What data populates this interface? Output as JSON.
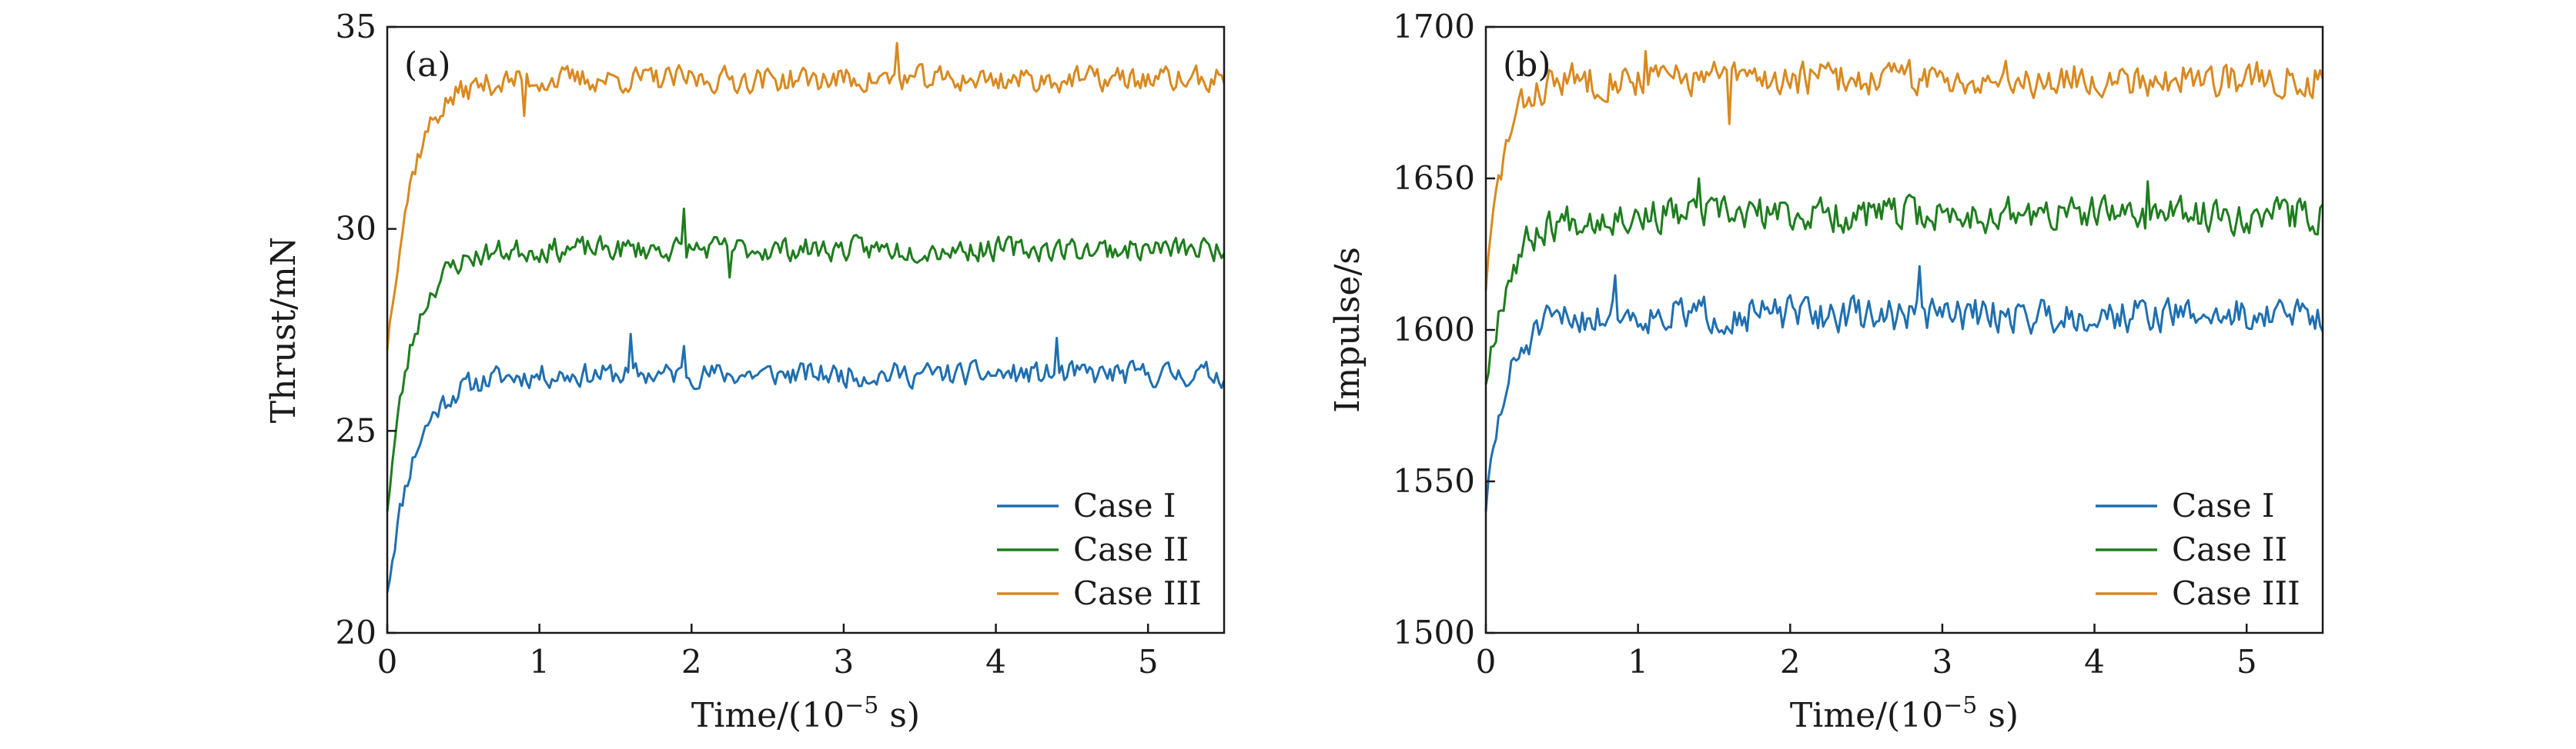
{
  "chart_data": [
    {
      "type": "line",
      "panel_label": "(a)",
      "xlabel": "Time/(10",
      "xlabel_exp": "−5",
      "xlabel_unit": " s)",
      "ylabel": "Thrust/mN",
      "xlim": [
        0,
        5.5
      ],
      "ylim": [
        20,
        35
      ],
      "xticks": [
        0,
        1,
        2,
        3,
        4,
        5
      ],
      "yticks": [
        20,
        25,
        30,
        35
      ],
      "legend_position": "bottom-right",
      "series": [
        {
          "name": "Case I",
          "color": "#1f6fb0",
          "start": 21.0,
          "steady": 26.4,
          "tau": 0.18,
          "noise": 0.28,
          "seed": 11,
          "spikes": [
            [
              1.6,
              27.4
            ],
            [
              1.95,
              27.1
            ],
            [
              4.4,
              27.3
            ]
          ]
        },
        {
          "name": "Case II",
          "color": "#1e7d1e",
          "start": 23.0,
          "steady": 29.5,
          "tau": 0.16,
          "noise": 0.28,
          "seed": 23,
          "spikes": [
            [
              1.95,
              30.5
            ],
            [
              2.25,
              28.8
            ]
          ]
        },
        {
          "name": "Case III",
          "color": "#d9891f",
          "start": 27.0,
          "steady": 33.7,
          "tau": 0.16,
          "noise": 0.3,
          "seed": 37,
          "spikes": [
            [
              3.35,
              34.6
            ],
            [
              0.9,
              32.8
            ]
          ]
        }
      ]
    },
    {
      "type": "line",
      "panel_label": "(b)",
      "xlabel": "Time/(10",
      "xlabel_exp": "−5",
      "xlabel_unit": " s)",
      "ylabel": "Impulse/s",
      "xlim": [
        0,
        5.5
      ],
      "ylim": [
        1500,
        1700
      ],
      "xticks": [
        0,
        1,
        2,
        3,
        4,
        5
      ],
      "yticks": [
        1500,
        1550,
        1600,
        1650,
        1700
      ],
      "legend_position": "bottom-right",
      "series": [
        {
          "name": "Case I",
          "color": "#1f6fb0",
          "start": 1540,
          "steady": 1605,
          "tau": 0.14,
          "noise": 5.5,
          "seed": 51,
          "spikes": [
            [
              2.85,
              1621
            ],
            [
              0.85,
              1618
            ]
          ]
        },
        {
          "name": "Case II",
          "color": "#1e7d1e",
          "start": 1582,
          "steady": 1638,
          "tau": 0.15,
          "noise": 5.5,
          "seed": 67,
          "spikes": [
            [
              1.4,
              1650
            ],
            [
              4.35,
              1649
            ]
          ]
        },
        {
          "name": "Case III",
          "color": "#d9891f",
          "start": 1613,
          "steady": 1683,
          "tau": 0.12,
          "noise": 5.5,
          "seed": 83,
          "spikes": [
            [
              1.05,
              1692
            ],
            [
              1.6,
              1668
            ]
          ]
        }
      ]
    }
  ]
}
